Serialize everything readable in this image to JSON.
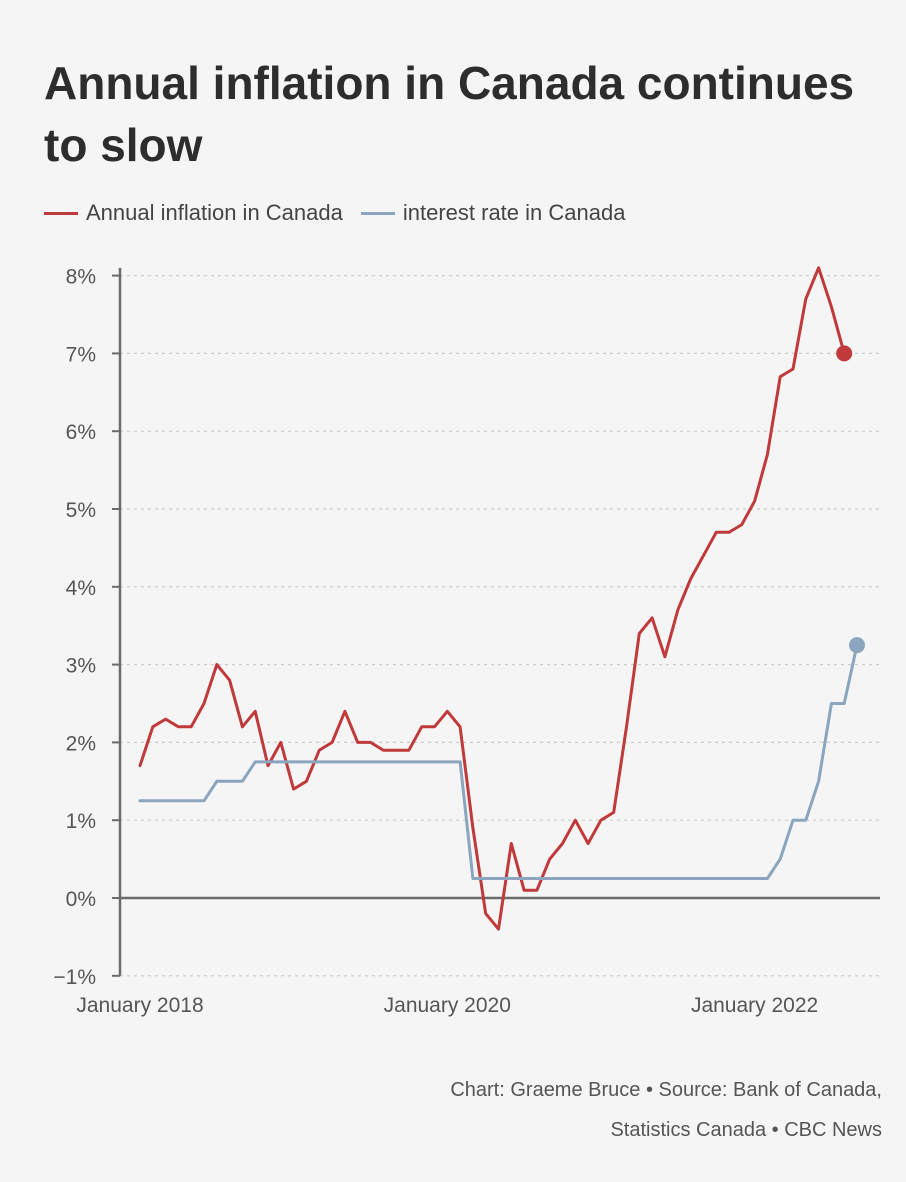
{
  "title": "Annual inflation in Canada continues to slow",
  "legend": {
    "inflation_label": "Annual inflation in Canada",
    "interest_label": "interest rate in Canada"
  },
  "footer": {
    "line1": "Chart: Graeme Bruce • Source: Bank of Canada,",
    "line2": "Statistics Canada • CBC News"
  },
  "colors": {
    "inflation": "#c0393b",
    "interest": "#8aa5bd",
    "axis": "#6b6b6b",
    "grid": "#cccccc"
  },
  "chart_data": {
    "type": "line",
    "title": "Annual inflation in Canada continues to slow",
    "xlabel": "",
    "ylabel": "",
    "x_ticks": [
      "January 2018",
      "January 2020",
      "January 2022"
    ],
    "x_tick_dates": [
      "2018-01",
      "2020-01",
      "2022-01"
    ],
    "y_ticks": [
      -1,
      0,
      1,
      2,
      3,
      4,
      5,
      6,
      7,
      8
    ],
    "y_tick_labels": [
      "−1%",
      "0%",
      "1%",
      "2%",
      "3%",
      "4%",
      "5%",
      "6%",
      "7%",
      "8%"
    ],
    "ylim": [
      -1,
      8.1
    ],
    "xlim": [
      "2017-11",
      "2022-11"
    ],
    "grid": true,
    "legend_position": "top-left",
    "series": [
      {
        "name": "Annual inflation in Canada",
        "color": "#c0393b",
        "end_marker": true,
        "x": [
          "2018-01",
          "2018-02",
          "2018-03",
          "2018-04",
          "2018-05",
          "2018-06",
          "2018-07",
          "2018-08",
          "2018-09",
          "2018-10",
          "2018-11",
          "2018-12",
          "2019-01",
          "2019-02",
          "2019-03",
          "2019-04",
          "2019-05",
          "2019-06",
          "2019-07",
          "2019-08",
          "2019-09",
          "2019-10",
          "2019-11",
          "2019-12",
          "2020-01",
          "2020-02",
          "2020-03",
          "2020-04",
          "2020-05",
          "2020-06",
          "2020-07",
          "2020-08",
          "2020-09",
          "2020-10",
          "2020-11",
          "2020-12",
          "2021-01",
          "2021-02",
          "2021-03",
          "2021-04",
          "2021-05",
          "2021-06",
          "2021-07",
          "2021-08",
          "2021-09",
          "2021-10",
          "2021-11",
          "2021-12",
          "2022-01",
          "2022-02",
          "2022-03",
          "2022-04",
          "2022-05",
          "2022-06",
          "2022-07",
          "2022-08"
        ],
        "values": [
          1.7,
          2.2,
          2.3,
          2.2,
          2.2,
          2.5,
          3.0,
          2.8,
          2.2,
          2.4,
          1.7,
          2.0,
          1.4,
          1.5,
          1.9,
          2.0,
          2.4,
          2.0,
          2.0,
          1.9,
          1.9,
          1.9,
          2.2,
          2.2,
          2.4,
          2.2,
          0.9,
          -0.2,
          -0.4,
          0.7,
          0.1,
          0.1,
          0.5,
          0.7,
          1.0,
          0.7,
          1.0,
          1.1,
          2.2,
          3.4,
          3.6,
          3.1,
          3.7,
          4.1,
          4.4,
          4.7,
          4.7,
          4.8,
          5.1,
          5.7,
          6.7,
          6.8,
          7.7,
          8.1,
          7.6,
          7.0
        ]
      },
      {
        "name": "interest rate in Canada",
        "color": "#8aa5bd",
        "end_marker": true,
        "x": [
          "2018-01",
          "2018-06",
          "2018-07",
          "2018-09",
          "2018-10",
          "2018-11",
          "2019-09",
          "2020-01",
          "2020-02",
          "2020-03",
          "2022-02",
          "2022-03",
          "2022-04",
          "2022-05",
          "2022-06",
          "2022-07",
          "2022-08",
          "2022-09"
        ],
        "values": [
          1.25,
          1.25,
          1.5,
          1.5,
          1.75,
          1.75,
          1.75,
          1.75,
          1.75,
          0.25,
          0.25,
          0.5,
          1.0,
          1.0,
          1.5,
          2.5,
          2.5,
          3.25
        ]
      }
    ]
  }
}
